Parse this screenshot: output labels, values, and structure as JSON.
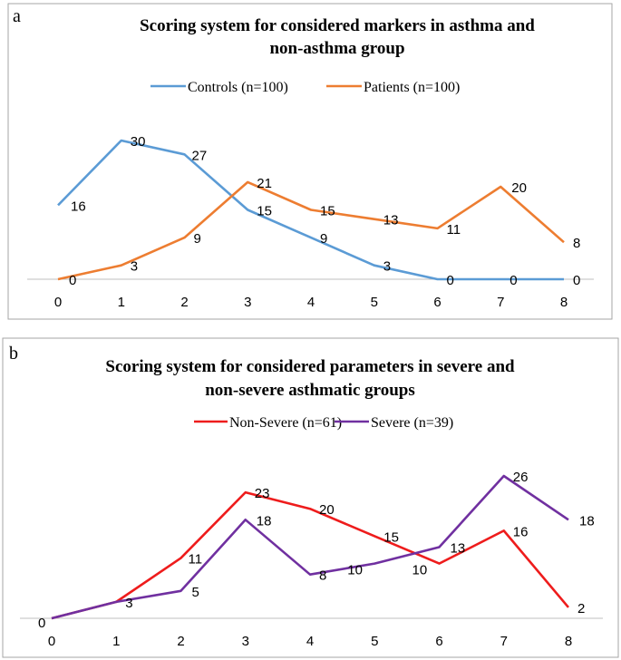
{
  "chart_data": [
    {
      "panel_label": "a",
      "type": "line",
      "title_lines": [
        "Scoring system  for  considered  markers in asthma and",
        "non-asthma group"
      ],
      "xlabel": "",
      "ylabel": "",
      "x": [
        0,
        1,
        2,
        3,
        4,
        5,
        6,
        7,
        8
      ],
      "tick_labels": [
        "0",
        "1",
        "2",
        "3",
        "4",
        "5",
        "6",
        "7",
        "8"
      ],
      "ylim": [
        0,
        30
      ],
      "grid": false,
      "legend_position": "top",
      "series": [
        {
          "name": "Controls (n=100)",
          "color": "#5b9bd5",
          "values": [
            16,
            30,
            27,
            15,
            9,
            3,
            0,
            0,
            0
          ],
          "labels": [
            "16",
            "30",
            "27",
            "15",
            "9",
            "3",
            "0",
            "0",
            "0"
          ]
        },
        {
          "name": "Patients (n=100)",
          "color": "#ed7d31",
          "values": [
            0,
            3,
            9,
            21,
            15,
            13,
            11,
            20,
            8
          ],
          "labels": [
            "0",
            "3",
            "9",
            "21",
            "15",
            "13",
            "11",
            "20",
            "8"
          ]
        }
      ]
    },
    {
      "panel_label": "b",
      "type": "line",
      "title_lines": [
        "Scoring system for considered parameters  in severe and",
        "non-severe asthmatic groups"
      ],
      "xlabel": "",
      "ylabel": "",
      "x": [
        0,
        1,
        2,
        3,
        4,
        5,
        6,
        7,
        8
      ],
      "tick_labels": [
        "0",
        "1",
        "2",
        "3",
        "4",
        "5",
        "6",
        "7",
        "8"
      ],
      "ylim": [
        0,
        26
      ],
      "grid": false,
      "legend_position": "top",
      "series": [
        {
          "name": "Non-Severe (n=61)",
          "color": "#ee1c1c",
          "values": [
            0,
            3,
            11,
            23,
            20,
            15,
            10,
            16,
            2
          ],
          "labels": [
            "0",
            "3",
            "11",
            "23",
            "20",
            "15",
            "10",
            "16",
            "2"
          ]
        },
        {
          "name": "Severe (n=39)",
          "color": "#7030a0",
          "values": [
            0,
            3,
            5,
            18,
            8,
            10,
            13,
            26,
            18
          ],
          "labels": [
            "0",
            "3",
            "5",
            "18",
            "8",
            "10",
            "13",
            "26",
            "18"
          ]
        }
      ]
    }
  ]
}
